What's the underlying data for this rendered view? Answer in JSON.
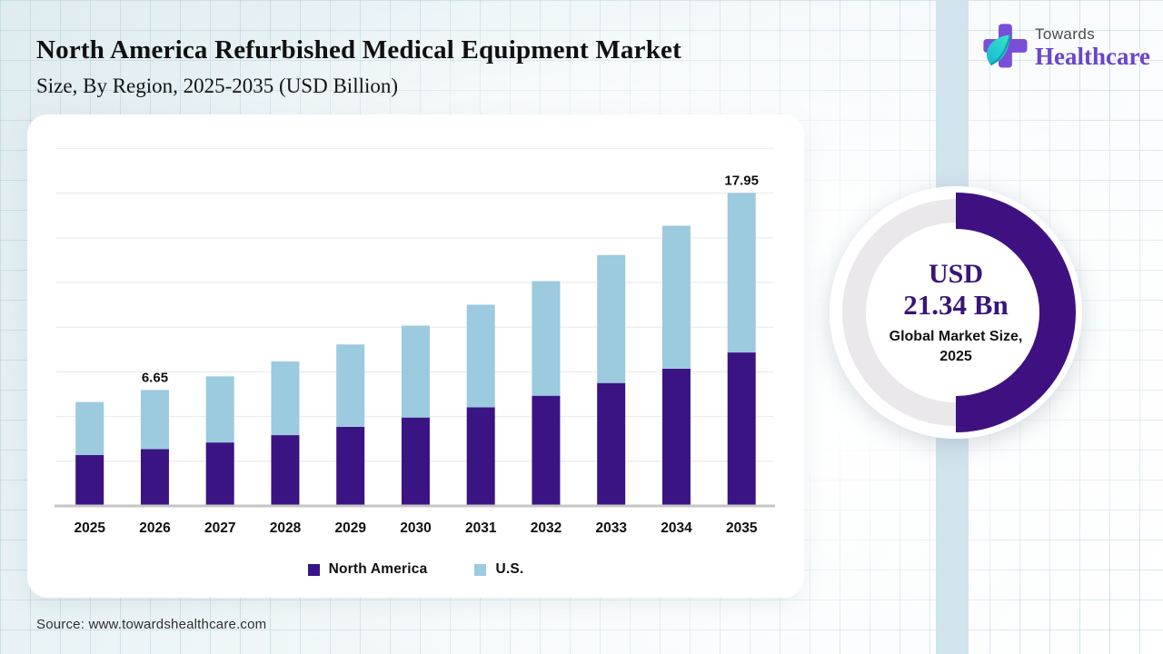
{
  "header": {
    "title": "North America Refurbished Medical Equipment Market",
    "subtitle": "Size, By Region, 2025-2035 (USD Billion)"
  },
  "logo": {
    "top_text": "Towards",
    "bottom_text": "Healthcare",
    "cross_color": "#7a4fd8",
    "leaf_color_start": "#3ae6c5",
    "leaf_color_end": "#17b5da",
    "top_text_color": "#4b4b4b",
    "bottom_text_color": "#6b46c8"
  },
  "chart_data": {
    "type": "bar",
    "stacked": true,
    "title": "North America Refurbished Medical Equipment Market Size, By Region, 2025-2035 (USD Billion)",
    "categories": [
      "2025",
      "2026",
      "2027",
      "2028",
      "2029",
      "2030",
      "2031",
      "2032",
      "2033",
      "2034",
      "2035"
    ],
    "series": [
      {
        "name": "North America",
        "color": "#3a1483",
        "values": [
          2.92,
          3.26,
          3.64,
          4.06,
          4.54,
          5.07,
          5.66,
          6.32,
          7.05,
          7.87,
          8.8
        ]
      },
      {
        "name": "U.S.",
        "color": "#9ccadf",
        "values": [
          3.04,
          3.39,
          3.79,
          4.23,
          4.72,
          5.27,
          5.88,
          6.57,
          7.34,
          8.2,
          9.15
        ]
      }
    ],
    "totals": [
      5.96,
      6.65,
      7.43,
      8.29,
      9.26,
      10.34,
      11.54,
      12.89,
      14.39,
      16.07,
      17.95
    ],
    "value_labels": [
      {
        "category": "2026",
        "text": "6.65"
      },
      {
        "category": "2035",
        "text": "17.95"
      }
    ],
    "xlabel": "",
    "ylabel": "",
    "ylim": [
      0,
      21.2
    ],
    "grid": true,
    "gridline_count": 8,
    "axis_color": "#c6c6c6",
    "grid_color": "#ededed",
    "legend_position": "bottom"
  },
  "donut": {
    "percent": 50,
    "value_line1": "USD",
    "value_line2": "21.34 Bn",
    "caption_line1": "Global Market Size,",
    "caption_line2": "2025",
    "arc_color": "#3f1180",
    "track_color": "#eae8ea"
  },
  "decor": {
    "band_color": "#d2e4ee"
  },
  "source": {
    "text": "Source: www.towardshealthcare.com"
  }
}
